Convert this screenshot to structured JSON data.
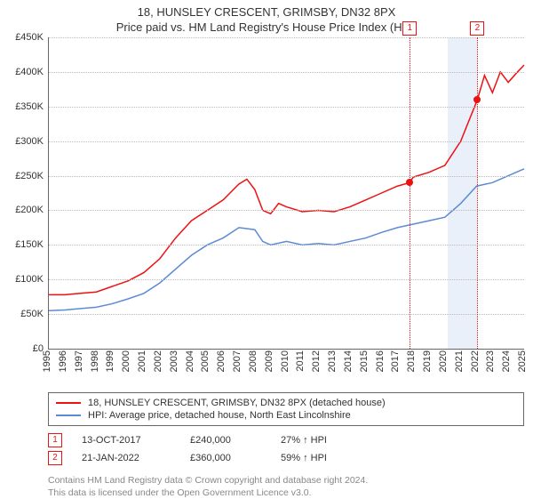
{
  "title_main": "18, HUNSLEY CRESCENT, GRIMSBY, DN32 8PX",
  "title_sub": "Price paid vs. HM Land Registry's House Price Index (HPI)",
  "chart": {
    "type": "line",
    "background_color": "#ffffff",
    "grid_color": "#bbbbbb",
    "axis_color": "#666666",
    "y_axis": {
      "min": 0,
      "max": 450000,
      "tick_step": 50000,
      "currency_prefix": "£",
      "fontsize": 11,
      "tick_labels": [
        "£0",
        "£50K",
        "£100K",
        "£150K",
        "£200K",
        "£250K",
        "£300K",
        "£350K",
        "£400K",
        "£450K"
      ]
    },
    "x_axis": {
      "min": 1995,
      "max": 2025,
      "tick_step": 1,
      "fontsize": 11,
      "rotation": -90,
      "tick_labels": [
        "1995",
        "1996",
        "1997",
        "1998",
        "1999",
        "2000",
        "2001",
        "2002",
        "2003",
        "2004",
        "2005",
        "2006",
        "2007",
        "2008",
        "2009",
        "2010",
        "2011",
        "2012",
        "2013",
        "2014",
        "2015",
        "2016",
        "2017",
        "2018",
        "2019",
        "2020",
        "2021",
        "2022",
        "2023",
        "2024",
        "2025"
      ]
    },
    "shaded_region": {
      "x_start": 2020.2,
      "x_end": 2022.05,
      "color": "#eaf0fa"
    },
    "vlines": [
      {
        "x": 2017.78,
        "color": "#e11",
        "badge": "1",
        "badge_y_offset": -18
      },
      {
        "x": 2022.05,
        "color": "#e11",
        "badge": "2",
        "badge_y_offset": -18
      }
    ],
    "markers": [
      {
        "x": 2017.78,
        "y": 240000,
        "color": "#e11"
      },
      {
        "x": 2022.05,
        "y": 360000,
        "color": "#e11"
      }
    ],
    "series": [
      {
        "name": "price_paid",
        "label": "18, HUNSLEY CRESCENT, GRIMSBY, DN32 8PX (detached house)",
        "color": "#e11",
        "line_width": 1.5,
        "xy": [
          [
            1995,
            78000
          ],
          [
            1996,
            78000
          ],
          [
            1997,
            80000
          ],
          [
            1998,
            82000
          ],
          [
            1999,
            90000
          ],
          [
            2000,
            98000
          ],
          [
            2001,
            110000
          ],
          [
            2002,
            130000
          ],
          [
            2003,
            160000
          ],
          [
            2004,
            185000
          ],
          [
            2005,
            200000
          ],
          [
            2006,
            215000
          ],
          [
            2007,
            238000
          ],
          [
            2007.5,
            245000
          ],
          [
            2008,
            230000
          ],
          [
            2008.5,
            200000
          ],
          [
            2009,
            195000
          ],
          [
            2009.5,
            210000
          ],
          [
            2010,
            205000
          ],
          [
            2011,
            198000
          ],
          [
            2012,
            200000
          ],
          [
            2013,
            198000
          ],
          [
            2014,
            205000
          ],
          [
            2015,
            215000
          ],
          [
            2016,
            225000
          ],
          [
            2017,
            235000
          ],
          [
            2017.78,
            240000
          ],
          [
            2018,
            248000
          ],
          [
            2019,
            255000
          ],
          [
            2020,
            265000
          ],
          [
            2021,
            300000
          ],
          [
            2022.05,
            360000
          ],
          [
            2022.5,
            395000
          ],
          [
            2023,
            370000
          ],
          [
            2023.5,
            400000
          ],
          [
            2024,
            385000
          ],
          [
            2024.5,
            398000
          ],
          [
            2025,
            410000
          ]
        ]
      },
      {
        "name": "hpi",
        "label": "HPI: Average price, detached house, North East Lincolnshire",
        "color": "#5b8bd4",
        "line_width": 1.5,
        "xy": [
          [
            1995,
            55000
          ],
          [
            1996,
            56000
          ],
          [
            1997,
            58000
          ],
          [
            1998,
            60000
          ],
          [
            1999,
            65000
          ],
          [
            2000,
            72000
          ],
          [
            2001,
            80000
          ],
          [
            2002,
            95000
          ],
          [
            2003,
            115000
          ],
          [
            2004,
            135000
          ],
          [
            2005,
            150000
          ],
          [
            2006,
            160000
          ],
          [
            2007,
            175000
          ],
          [
            2008,
            172000
          ],
          [
            2008.5,
            155000
          ],
          [
            2009,
            150000
          ],
          [
            2010,
            155000
          ],
          [
            2011,
            150000
          ],
          [
            2012,
            152000
          ],
          [
            2013,
            150000
          ],
          [
            2014,
            155000
          ],
          [
            2015,
            160000
          ],
          [
            2016,
            168000
          ],
          [
            2017,
            175000
          ],
          [
            2018,
            180000
          ],
          [
            2019,
            185000
          ],
          [
            2020,
            190000
          ],
          [
            2021,
            210000
          ],
          [
            2022,
            235000
          ],
          [
            2023,
            240000
          ],
          [
            2024,
            250000
          ],
          [
            2025,
            260000
          ]
        ]
      }
    ]
  },
  "legend": {
    "border_color": "#666666",
    "items": [
      {
        "color": "#e11",
        "label": "18, HUNSLEY CRESCENT, GRIMSBY, DN32 8PX (detached house)"
      },
      {
        "color": "#5b8bd4",
        "label": "HPI: Average price, detached house, North East Lincolnshire"
      }
    ]
  },
  "sales": [
    {
      "badge": "1",
      "date": "13-OCT-2017",
      "price": "£240,000",
      "delta": "27% ↑ HPI"
    },
    {
      "badge": "2",
      "date": "21-JAN-2022",
      "price": "£360,000",
      "delta": "59% ↑ HPI"
    }
  ],
  "attribution": {
    "line1": "Contains HM Land Registry data © Crown copyright and database right 2024.",
    "line2": "This data is licensed under the Open Government Licence v3.0."
  }
}
